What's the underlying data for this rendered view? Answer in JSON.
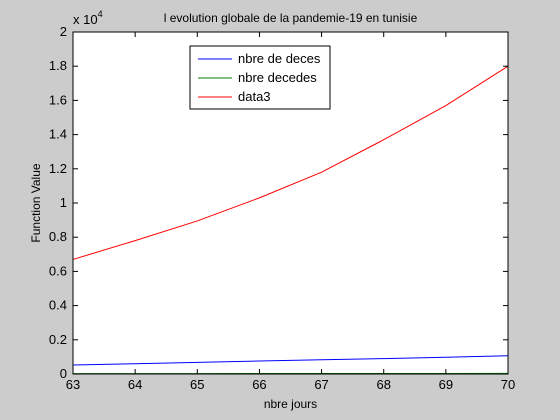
{
  "chart_data": {
    "type": "line",
    "title": "l evolution globale de la pandemie-19 en tunisie",
    "xlabel": "nbre jours",
    "ylabel": "Function Value",
    "y_multiplier_label": "x 10",
    "y_multiplier_exponent": "4",
    "xlim": [
      63,
      70
    ],
    "ylim": [
      0,
      20000
    ],
    "x_ticks": [
      "63",
      "64",
      "65",
      "66",
      "67",
      "68",
      "69",
      "70"
    ],
    "y_ticks": [
      "0",
      "0.2",
      "0.4",
      "0.6",
      "0.8",
      "1",
      "1.2",
      "1.4",
      "1.6",
      "1.8",
      "2"
    ],
    "grid": false,
    "legend_position": "top-center",
    "x": [
      63,
      64,
      65,
      66,
      67,
      68,
      69,
      70
    ],
    "series": [
      {
        "name": "nbre de deces",
        "color": "#0000ff",
        "values": [
          530,
          600,
          680,
          760,
          830,
          900,
          980,
          1070
        ]
      },
      {
        "name": "nbre decedes",
        "color": "#008000",
        "values": [
          20,
          22,
          24,
          26,
          28,
          30,
          32,
          34
        ]
      },
      {
        "name": "data3",
        "color": "#ff0000",
        "values": [
          6700,
          7800,
          8950,
          10300,
          11800,
          13700,
          15700,
          18000
        ]
      }
    ]
  }
}
